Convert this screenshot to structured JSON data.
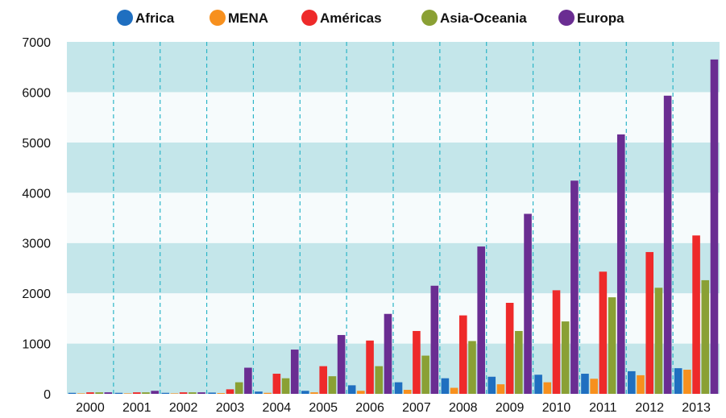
{
  "chart_data": {
    "type": "bar",
    "title": "",
    "xlabel": "",
    "ylabel": "",
    "ylim": [
      0,
      7000
    ],
    "yticks": [
      0,
      1000,
      2000,
      3000,
      4000,
      5000,
      6000,
      7000
    ],
    "legend_position": "top",
    "grid": "horizontal bands and dashed vertical lines",
    "categories": [
      "2000",
      "2001",
      "2002",
      "2003",
      "2004",
      "2005",
      "2006",
      "2007",
      "2008",
      "2009",
      "2010",
      "2011",
      "2012",
      "2013"
    ],
    "series": [
      {
        "name": "Africa",
        "color": "#1f6fc0",
        "values": [
          20,
          20,
          20,
          25,
          45,
          60,
          170,
          230,
          310,
          340,
          380,
          400,
          450,
          510
        ]
      },
      {
        "name": "MENA",
        "color": "#f7901e",
        "values": [
          10,
          10,
          10,
          15,
          20,
          30,
          60,
          80,
          120,
          190,
          230,
          300,
          370,
          480
        ]
      },
      {
        "name": "Américas",
        "color": "#ee2a2a",
        "values": [
          30,
          30,
          30,
          90,
          400,
          550,
          1060,
          1250,
          1560,
          1810,
          2060,
          2430,
          2820,
          3150
        ]
      },
      {
        "name": "Asia-Oceania",
        "color": "#8aa034",
        "values": [
          30,
          30,
          30,
          230,
          310,
          350,
          550,
          760,
          1050,
          1250,
          1440,
          1920,
          2110,
          2260
        ]
      },
      {
        "name": "Europa",
        "color": "#6a2d92",
        "values": [
          30,
          60,
          30,
          520,
          880,
          1170,
          1590,
          2150,
          2930,
          3580,
          4240,
          5160,
          5930,
          6650
        ]
      }
    ]
  }
}
